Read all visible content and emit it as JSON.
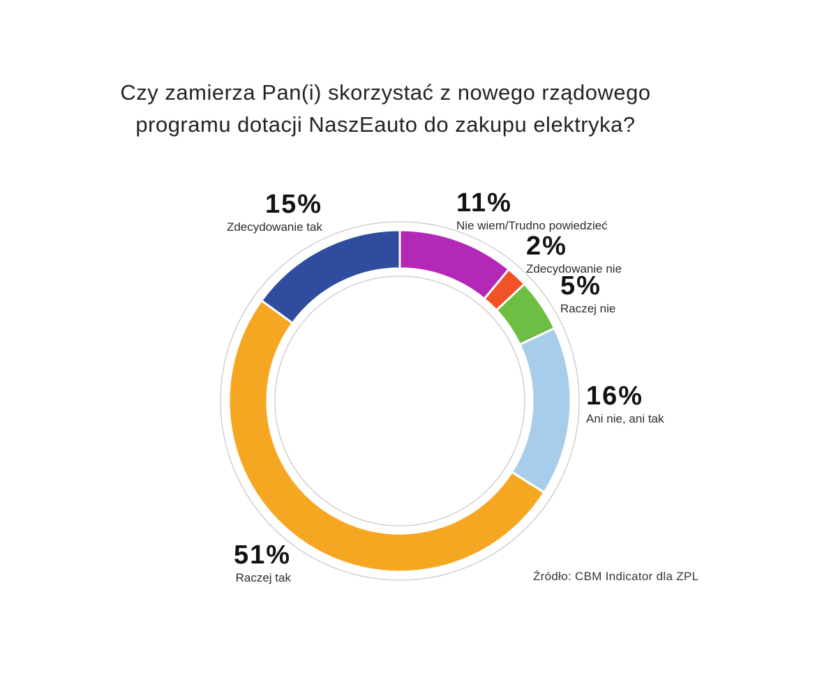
{
  "title": {
    "line1": "Czy zamierza Pan(i) skorzystać z nowego rządowego",
    "line2": "programu dotacji NaszEauto do zakupu elektryka?"
  },
  "source": "Źródło: CBM Indicator dla ZPL",
  "chart_data": {
    "type": "pie",
    "subtype": "donut",
    "title": "Czy zamierza Pan(i) skorzystać z nowego rządowego programu dotacji NaszEauto do zakupu elektryka?",
    "start_angle_deg": 0,
    "direction": "clockwise",
    "legend_position": "callouts-around-ring",
    "segments": [
      {
        "label": "Nie wiem/Trudno powiedzieć",
        "value": 11,
        "value_label": "11%",
        "color": "#b428b8"
      },
      {
        "label": "Zdecydowanie nie",
        "value": 2,
        "value_label": "2%",
        "color": "#f05325"
      },
      {
        "label": "Raczej nie",
        "value": 5,
        "value_label": "5%",
        "color": "#6dbf44"
      },
      {
        "label": "Ani nie, ani tak",
        "value": 16,
        "value_label": "16%",
        "color": "#a8cdea"
      },
      {
        "label": "Raczej tak",
        "value": 51,
        "value_label": "51%",
        "color": "#f6a722"
      },
      {
        "label": "Zdecydowanie tak",
        "value": 15,
        "value_label": "15%",
        "color": "#2f4c9e"
      }
    ],
    "ring": {
      "outer_radius": 245,
      "inner_radius": 190,
      "segment_border_color": "#ffffff",
      "segment_border_width": 3,
      "guide_circle_color": "#c8c8c8",
      "outer_guide_radius": 257,
      "inner_guide_radius": 179
    }
  }
}
